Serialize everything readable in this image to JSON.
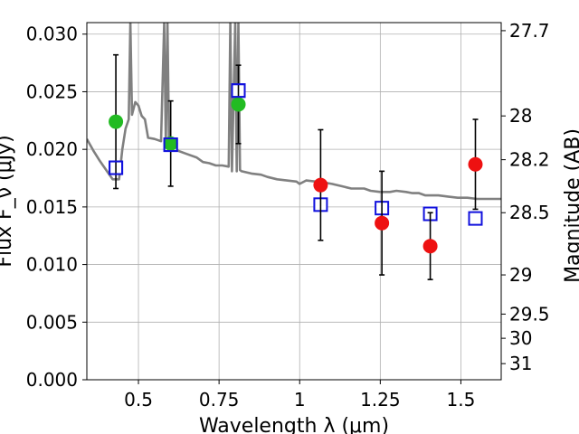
{
  "chart_data": {
    "type": "scatter",
    "title": "",
    "xlabel": "Wavelength λ (μm)",
    "ylabel": "Flux F_ν (μJy)",
    "y2label": "Magnitude (AB)",
    "xlim": [
      0.34,
      1.625
    ],
    "ylim": [
      0.0,
      0.031
    ],
    "grid": true,
    "legend": "none",
    "x_ticks": [
      {
        "value": 0.5,
        "label": "0.5"
      },
      {
        "value": 0.75,
        "label": "0.75"
      },
      {
        "value": 1.0,
        "label": "1"
      },
      {
        "value": 1.25,
        "label": "1.25"
      },
      {
        "value": 1.5,
        "label": "1.5"
      }
    ],
    "y_ticks": [
      {
        "value": 0.0,
        "label": "0.000"
      },
      {
        "value": 0.005,
        "label": "0.005"
      },
      {
        "value": 0.01,
        "label": "0.010"
      },
      {
        "value": 0.015,
        "label": "0.015"
      },
      {
        "value": 0.02,
        "label": "0.020"
      },
      {
        "value": 0.025,
        "label": "0.025"
      },
      {
        "value": 0.03,
        "label": "0.030"
      }
    ],
    "y2_ticks": [
      {
        "label": "27.7",
        "flux": 0.0303
      },
      {
        "label": "28",
        "flux": 0.0229
      },
      {
        "label": "28.2",
        "flux": 0.0191
      },
      {
        "label": "28.5",
        "flux": 0.0145
      },
      {
        "label": "29",
        "flux": 0.0091
      },
      {
        "label": "29.5",
        "flux": 0.0057
      },
      {
        "label": "30",
        "flux": 0.0036
      },
      {
        "label": "31",
        "flux": 0.0014
      }
    ],
    "series": [
      {
        "name": "model-spectrum",
        "kind": "line",
        "color": "#808080",
        "points": [
          [
            0.34,
            0.0209
          ],
          [
            0.36,
            0.0199
          ],
          [
            0.38,
            0.019
          ],
          [
            0.4,
            0.0182
          ],
          [
            0.42,
            0.0174
          ],
          [
            0.44,
            0.0174
          ],
          [
            0.45,
            0.02
          ],
          [
            0.46,
            0.0218
          ],
          [
            0.47,
            0.0226
          ],
          [
            0.475,
            0.031
          ],
          [
            0.48,
            0.023
          ],
          [
            0.49,
            0.0241
          ],
          [
            0.5,
            0.0238
          ],
          [
            0.51,
            0.0229
          ],
          [
            0.52,
            0.0226
          ],
          [
            0.53,
            0.021
          ],
          [
            0.55,
            0.0209
          ],
          [
            0.57,
            0.0207
          ],
          [
            0.58,
            0.031
          ],
          [
            0.585,
            0.0205
          ],
          [
            0.59,
            0.031
          ],
          [
            0.595,
            0.0203
          ],
          [
            0.6,
            0.0202
          ],
          [
            0.62,
            0.0199
          ],
          [
            0.65,
            0.0196
          ],
          [
            0.68,
            0.0193
          ],
          [
            0.7,
            0.0189
          ],
          [
            0.72,
            0.0188
          ],
          [
            0.74,
            0.0186
          ],
          [
            0.76,
            0.0186
          ],
          [
            0.78,
            0.0185
          ],
          [
            0.785,
            0.031
          ],
          [
            0.79,
            0.0181
          ],
          [
            0.8,
            0.031
          ],
          [
            0.805,
            0.0181
          ],
          [
            0.81,
            0.031
          ],
          [
            0.815,
            0.0182
          ],
          [
            0.82,
            0.0181
          ],
          [
            0.85,
            0.0179
          ],
          [
            0.88,
            0.0178
          ],
          [
            0.9,
            0.0176
          ],
          [
            0.93,
            0.0174
          ],
          [
            0.96,
            0.0173
          ],
          [
            0.99,
            0.0172
          ],
          [
            1.0,
            0.017
          ],
          [
            1.02,
            0.0173
          ],
          [
            1.05,
            0.0172
          ],
          [
            1.08,
            0.0171
          ],
          [
            1.1,
            0.017
          ],
          [
            1.13,
            0.0168
          ],
          [
            1.16,
            0.0166
          ],
          [
            1.2,
            0.0166
          ],
          [
            1.22,
            0.0164
          ],
          [
            1.25,
            0.0163
          ],
          [
            1.28,
            0.0163
          ],
          [
            1.3,
            0.0164
          ],
          [
            1.33,
            0.0163
          ],
          [
            1.35,
            0.0162
          ],
          [
            1.37,
            0.0162
          ],
          [
            1.39,
            0.016
          ],
          [
            1.41,
            0.016
          ],
          [
            1.43,
            0.016
          ],
          [
            1.46,
            0.0159
          ],
          [
            1.49,
            0.0158
          ],
          [
            1.52,
            0.0158
          ],
          [
            1.55,
            0.0157
          ],
          [
            1.58,
            0.0157
          ],
          [
            1.625,
            0.0157
          ]
        ]
      },
      {
        "name": "observed-optical",
        "kind": "marker-circle",
        "color": "#22bb22",
        "points": [
          {
            "x": 0.43,
            "y": 0.0224,
            "err_lo": 0.0058,
            "err_hi": 0.0058
          },
          {
            "x": 0.6,
            "y": 0.0205,
            "err_lo": 0.0037,
            "err_hi": 0.0037
          },
          {
            "x": 0.81,
            "y": 0.0239,
            "err_lo": 0.0034,
            "err_hi": 0.0034
          }
        ]
      },
      {
        "name": "observed-nir",
        "kind": "marker-circle",
        "color": "#ee1111",
        "points": [
          {
            "x": 1.065,
            "y": 0.0169,
            "err_lo": 0.0048,
            "err_hi": 0.0048
          },
          {
            "x": 1.255,
            "y": 0.0136,
            "err_lo": 0.0045,
            "err_hi": 0.0045
          },
          {
            "x": 1.405,
            "y": 0.0116,
            "err_lo": 0.0029,
            "err_hi": 0.0029
          },
          {
            "x": 1.545,
            "y": 0.0187,
            "err_lo": 0.0039,
            "err_hi": 0.0039
          }
        ]
      },
      {
        "name": "model-photometry",
        "kind": "marker-square",
        "color": "#1111dd",
        "points": [
          {
            "x": 0.43,
            "y": 0.0184
          },
          {
            "x": 0.6,
            "y": 0.0204
          },
          {
            "x": 0.81,
            "y": 0.0251
          },
          {
            "x": 1.065,
            "y": 0.0152
          },
          {
            "x": 1.255,
            "y": 0.0149
          },
          {
            "x": 1.405,
            "y": 0.0144
          },
          {
            "x": 1.545,
            "y": 0.014
          }
        ]
      }
    ]
  }
}
